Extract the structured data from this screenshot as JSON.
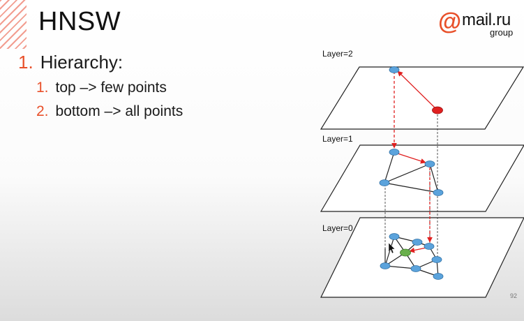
{
  "slide": {
    "title": "HNSW",
    "page_number": "92"
  },
  "logo": {
    "symbol": "@",
    "word": "mail.ru",
    "subword": "group",
    "accent_color": "#e8502a"
  },
  "bullets": [
    {
      "number": "1.",
      "text": "Hierarchy:",
      "children": [
        {
          "number": "1.",
          "text": "top –> few points"
        },
        {
          "number": "2.",
          "text": "bottom –> all points"
        }
      ]
    }
  ],
  "diagram": {
    "layers": [
      {
        "label": "Layer=2"
      },
      {
        "label": "Layer=1"
      },
      {
        "label": "Layer=0"
      }
    ],
    "colors": {
      "node": "#5ba3dc",
      "entry_node": "#e02020",
      "target_node": "#6ab04c",
      "search_path": "#e02020"
    }
  }
}
